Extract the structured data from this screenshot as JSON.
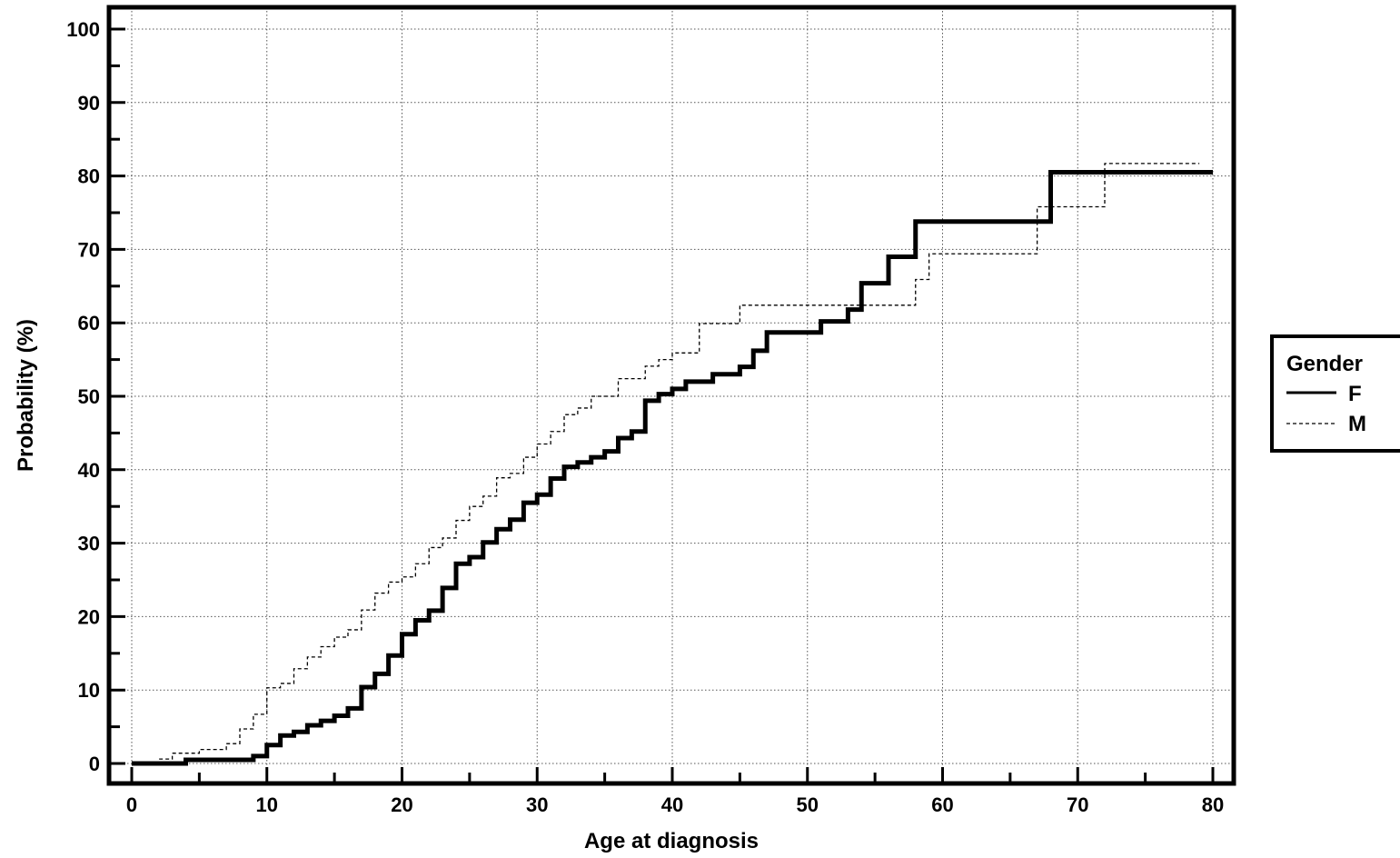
{
  "chart_data": {
    "type": "line",
    "title": "",
    "xlabel": "Age at diagnosis",
    "ylabel": "Probability (%)",
    "xlim": [
      0,
      80
    ],
    "ylim": [
      0,
      100
    ],
    "x_ticks": [
      0,
      10,
      20,
      30,
      40,
      50,
      60,
      70,
      80
    ],
    "y_ticks": [
      0,
      10,
      20,
      30,
      40,
      50,
      60,
      70,
      80,
      90,
      100
    ],
    "x_tick_labels": [
      "0",
      "10",
      "20",
      "30",
      "40",
      "50",
      "60",
      "70",
      "80"
    ],
    "y_tick_labels": [
      "0",
      "10",
      "20",
      "30",
      "40",
      "50",
      "60",
      "70",
      "80",
      "90",
      "100"
    ],
    "grid": true,
    "step": true,
    "legend": {
      "title": "Gender",
      "placement": "right",
      "entries": [
        "F",
        "M"
      ]
    },
    "series": [
      {
        "name": "F",
        "style": "solid-thick",
        "color": "#000000",
        "x": [
          0,
          4,
          9,
          10,
          11,
          12,
          13,
          14,
          15,
          16,
          17,
          18,
          19,
          20,
          21,
          22,
          23,
          24,
          25,
          26,
          27,
          28,
          29,
          30,
          31,
          32,
          33,
          34,
          35,
          36,
          37,
          38,
          39,
          40,
          41,
          43,
          45,
          46,
          47,
          51,
          53,
          54,
          56,
          58,
          68,
          80
        ],
        "y": [
          0,
          0.5,
          1.0,
          2.5,
          3.8,
          4.3,
          5.2,
          5.8,
          6.5,
          7.5,
          10.4,
          12.2,
          14.7,
          17.6,
          19.5,
          20.8,
          23.9,
          27.2,
          28.1,
          30.1,
          31.9,
          33.2,
          35.5,
          36.6,
          38.8,
          40.4,
          41.0,
          41.7,
          42.5,
          44.3,
          45.2,
          49.4,
          50.3,
          51.0,
          52.0,
          53.0,
          54.0,
          56.2,
          58.7,
          60.2,
          61.8,
          65.4,
          69.0,
          73.8,
          80.5,
          80.5
        ]
      },
      {
        "name": "M",
        "style": "dashed-thin",
        "color": "#000000",
        "x": [
          0,
          2,
          3,
          5,
          7,
          8,
          9,
          10,
          11,
          12,
          13,
          14,
          15,
          16,
          17,
          18,
          19,
          20,
          21,
          22,
          23,
          24,
          25,
          26,
          27,
          28,
          29,
          30,
          31,
          32,
          33,
          34,
          36,
          38,
          39,
          40,
          42,
          45,
          58,
          59,
          67,
          72,
          79
        ],
        "y": [
          0,
          0.6,
          1.4,
          1.9,
          2.7,
          4.7,
          6.7,
          10.3,
          10.9,
          12.9,
          14.5,
          15.9,
          17.2,
          18.2,
          20.9,
          23.2,
          24.7,
          25.4,
          27.2,
          29.4,
          30.7,
          33.1,
          35.0,
          36.4,
          38.9,
          39.5,
          41.7,
          43.5,
          45.2,
          47.5,
          48.4,
          50.0,
          52.4,
          54.1,
          55.0,
          55.9,
          59.9,
          62.4,
          65.9,
          69.4,
          75.8,
          81.7,
          81.7
        ]
      }
    ]
  }
}
